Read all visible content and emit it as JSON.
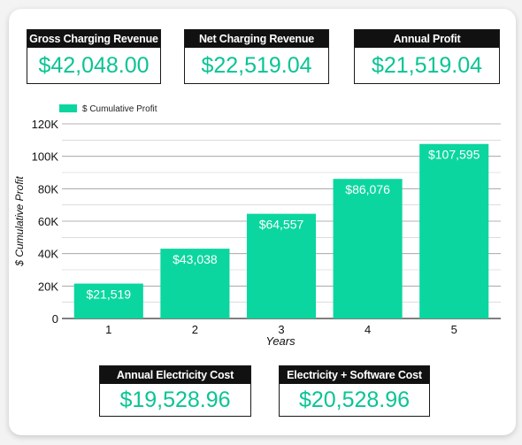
{
  "kpis_top": [
    {
      "label": "Gross Charging Revenue",
      "value": "$42,048.00"
    },
    {
      "label": "Net Charging Revenue",
      "value": "$22,519.04"
    },
    {
      "label": "Annual Profit",
      "value": "$21,519.04"
    }
  ],
  "kpis_bottom": [
    {
      "label": "Annual Electricity Cost",
      "value": "$19,528.96"
    },
    {
      "label": "Electricity + Software Cost",
      "value": "$20,528.96"
    }
  ],
  "colors": {
    "accent": "#0ac494",
    "bar": "#0bd69f",
    "header_bg": "#111111"
  },
  "chart_data": {
    "type": "bar",
    "categories": [
      "1",
      "2",
      "3",
      "4",
      "5"
    ],
    "series": [
      {
        "name": "$ Cumulative Profit",
        "values": [
          21519,
          43038,
          64557,
          86076,
          107595
        ]
      }
    ],
    "data_labels": [
      "$21,519",
      "$43,038",
      "$64,557",
      "$86,076",
      "$107,595"
    ],
    "xlabel": "Years",
    "ylabel": "$ Cumulative Profit",
    "ylim": [
      0,
      120000
    ],
    "yticks": [
      0,
      20000,
      40000,
      60000,
      80000,
      100000,
      120000
    ],
    "ytick_labels": [
      "0",
      "20K",
      "40K",
      "60K",
      "80K",
      "100K",
      "120K"
    ],
    "grid": true,
    "legend": "top-left"
  }
}
